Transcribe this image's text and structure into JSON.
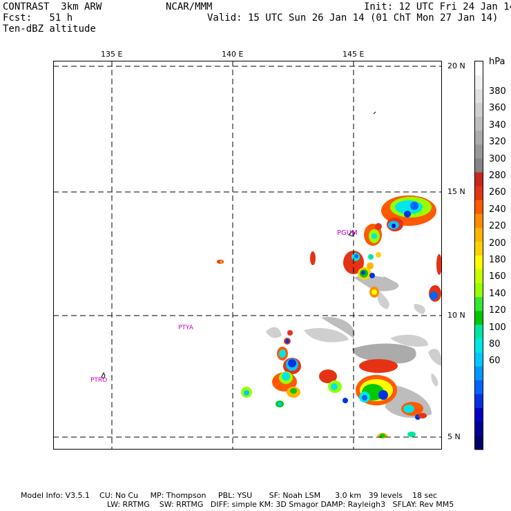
{
  "header": {
    "model": "CONTRAST  3km ARW",
    "fcst": "Fcst:   51 h",
    "field": "Ten-dBZ altitude",
    "org": "NCAR/MMM",
    "init": "Init: 12 UTC Fri 24 Jan 14",
    "valid": "Valid: 15 UTC Sun 26 Jan 14 (01 ChT Mon 27 Jan 14)"
  },
  "map": {
    "lon_labels": [
      "135 E",
      "140 E",
      "145 E"
    ],
    "lat_labels": [
      "20 N",
      "15 N",
      "10 N",
      "5 N"
    ],
    "stations": [
      "PGUM",
      "PTYA",
      "PTRO"
    ],
    "frame_color": "#000000",
    "grid_style": "dashed"
  },
  "colorbar": {
    "unit": "hPa",
    "labels": [
      "380",
      "360",
      "340",
      "320",
      "300",
      "280",
      "260",
      "240",
      "220",
      "200",
      "180",
      "160",
      "140",
      "120",
      "100",
      "80",
      "60"
    ],
    "colors": [
      "#ffffff",
      "#f0f0f0",
      "#e0e0e0",
      "#cfcfcf",
      "#bdbdbd",
      "#ababab",
      "#989898",
      "#858585",
      "#c8281e",
      "#e63214",
      "#ff5a00",
      "#ff8c00",
      "#ffb400",
      "#ffd200",
      "#ffff00",
      "#c8ff00",
      "#96ff00",
      "#32e632",
      "#00c800",
      "#00e6a0",
      "#00e6e6",
      "#00c8ff",
      "#0096ff",
      "#0064ff",
      "#0032e6",
      "#0000c8",
      "#000096",
      "#000064"
    ]
  },
  "footer": {
    "line1": "Model Info: V3.5.1    CU: No Cu     MP: Thompson     PBL: YSU       SF: Noah LSM      3.0 km   39 levels    18 sec",
    "line2": "LW: RRTMG    SW: RRTMG   DIFF: simple KM: 3D Smagor DAMP: Rayleigh3   SFLAY: Rev MM5"
  }
}
